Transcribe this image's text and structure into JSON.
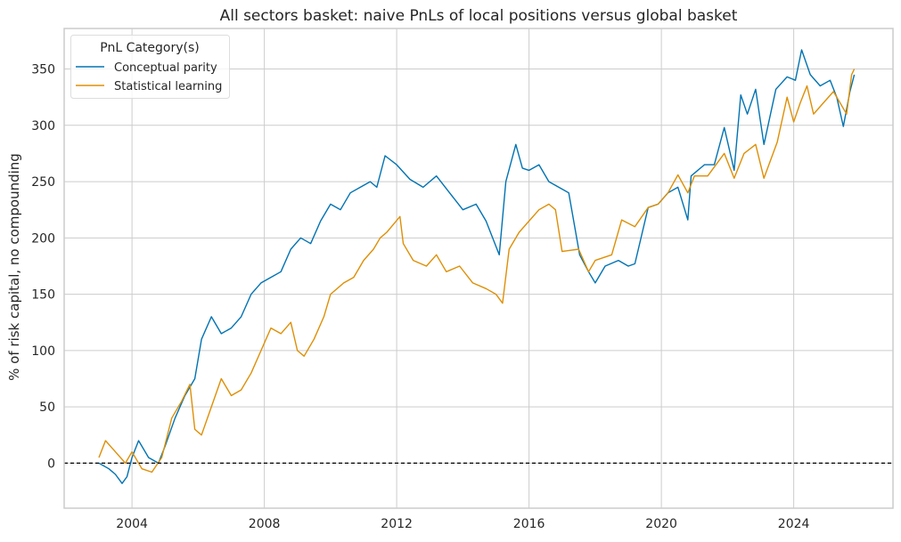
{
  "chart_data": {
    "type": "line",
    "title": "All sectors basket: naive PnLs of local positions versus global basket",
    "xlabel": "",
    "ylabel": "% of risk capital, no compounding",
    "xlim": [
      2001.95,
      2027.0
    ],
    "ylim": [
      -40,
      386
    ],
    "x_ticks": [
      2004,
      2008,
      2012,
      2016,
      2020,
      2024
    ],
    "x_tick_labels": [
      "2004",
      "2008",
      "2012",
      "2016",
      "2020",
      "2024"
    ],
    "y_ticks": [
      0,
      50,
      100,
      150,
      200,
      250,
      300,
      350
    ],
    "y_tick_labels": [
      "0",
      "50",
      "100",
      "150",
      "200",
      "250",
      "300",
      "350"
    ],
    "grid": true,
    "reference_line": {
      "y": 0,
      "style": "dashed",
      "color": "#000000"
    },
    "legend": {
      "title": "PnL Category(s)",
      "placement": "top-left"
    },
    "series": [
      {
        "name": "Conceptual parity",
        "color": "#0173b2",
        "x": [
          2003.0,
          2003.3,
          2003.5,
          2003.7,
          2003.85,
          2004.0,
          2004.2,
          2004.5,
          2004.8,
          2005.0,
          2005.3,
          2005.6,
          2005.9,
          2006.1,
          2006.4,
          2006.7,
          2007.0,
          2007.3,
          2007.6,
          2007.9,
          2008.2,
          2008.5,
          2008.8,
          2009.1,
          2009.4,
          2009.7,
          2010.0,
          2010.3,
          2010.6,
          2010.9,
          2011.2,
          2011.4,
          2011.65,
          2012.0,
          2012.4,
          2012.8,
          2013.2,
          2013.6,
          2014.0,
          2014.4,
          2014.7,
          2015.1,
          2015.3,
          2015.6,
          2015.8,
          2016.0,
          2016.3,
          2016.6,
          2016.9,
          2017.2,
          2017.53,
          2017.8,
          2018.0,
          2018.3,
          2018.7,
          2019.0,
          2019.2,
          2019.6,
          2019.9,
          2020.2,
          2020.5,
          2020.8,
          2020.9,
          2021.3,
          2021.6,
          2021.9,
          2022.2,
          2022.4,
          2022.6,
          2022.85,
          2023.1,
          2023.46,
          2023.8,
          2024.05,
          2024.24,
          2024.5,
          2024.8,
          2025.1,
          2025.3,
          2025.5,
          2025.7,
          2025.83
        ],
        "y": [
          0,
          -5,
          -10,
          -18,
          -12,
          5,
          20,
          5,
          0,
          15,
          40,
          60,
          75,
          110,
          130,
          115,
          120,
          130,
          150,
          160,
          165,
          170,
          190,
          200,
          195,
          215,
          230,
          225,
          240,
          245,
          250,
          245,
          273,
          265,
          252,
          245,
          255,
          240,
          225,
          230,
          215,
          185,
          250,
          283,
          262,
          260,
          265,
          250,
          245,
          240,
          185,
          170,
          160,
          175,
          180,
          175,
          177,
          227,
          230,
          240,
          245,
          216,
          255,
          265,
          265,
          298,
          260,
          327,
          310,
          332,
          283,
          332,
          343,
          340,
          367,
          345,
          335,
          340,
          325,
          299,
          330,
          345
        ]
      },
      {
        "name": "Statistical learning",
        "color": "#de8f05",
        "x": [
          2003.0,
          2003.2,
          2003.5,
          2003.8,
          2004.0,
          2004.3,
          2004.6,
          2004.9,
          2005.2,
          2005.5,
          2005.75,
          2005.9,
          2006.1,
          2006.4,
          2006.7,
          2007.0,
          2007.3,
          2007.6,
          2007.9,
          2008.2,
          2008.5,
          2008.8,
          2009.0,
          2009.2,
          2009.5,
          2009.8,
          2010.0,
          2010.4,
          2010.7,
          2011.0,
          2011.3,
          2011.5,
          2011.7,
          2012.1,
          2012.2,
          2012.5,
          2012.9,
          2013.2,
          2013.5,
          2013.9,
          2014.3,
          2014.7,
          2015.0,
          2015.2,
          2015.4,
          2015.7,
          2016.0,
          2016.3,
          2016.6,
          2016.8,
          2017.0,
          2017.5,
          2017.8,
          2018.0,
          2018.5,
          2018.8,
          2019.2,
          2019.6,
          2019.9,
          2020.2,
          2020.5,
          2020.8,
          2021.0,
          2021.4,
          2021.9,
          2022.2,
          2022.5,
          2022.85,
          2023.1,
          2023.5,
          2023.8,
          2024.0,
          2024.2,
          2024.4,
          2024.6,
          2024.9,
          2025.2,
          2025.4,
          2025.6,
          2025.75,
          2025.83
        ],
        "y": [
          5,
          20,
          10,
          0,
          10,
          -5,
          -8,
          5,
          40,
          55,
          70,
          30,
          25,
          50,
          75,
          60,
          65,
          80,
          100,
          120,
          115,
          125,
          100,
          95,
          110,
          130,
          150,
          160,
          165,
          180,
          190,
          200,
          205,
          219,
          195,
          180,
          175,
          185,
          170,
          175,
          160,
          155,
          150,
          142,
          190,
          205,
          215,
          225,
          230,
          225,
          188,
          190,
          170,
          180,
          185,
          216,
          210,
          227,
          230,
          240,
          256,
          240,
          255,
          255,
          275,
          253,
          275,
          283,
          253,
          285,
          325,
          303,
          320,
          335,
          310,
          320,
          330,
          320,
          310,
          345,
          350
        ]
      }
    ]
  }
}
